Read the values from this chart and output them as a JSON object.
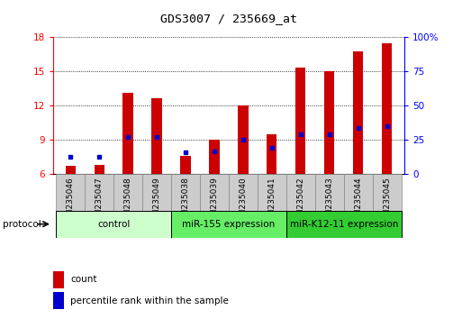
{
  "title": "GDS3007 / 235669_at",
  "categories": [
    "GSM235046",
    "GSM235047",
    "GSM235048",
    "GSM235049",
    "GSM235038",
    "GSM235039",
    "GSM235040",
    "GSM235041",
    "GSM235042",
    "GSM235043",
    "GSM235044",
    "GSM235045"
  ],
  "count_values": [
    6.7,
    6.8,
    13.1,
    12.6,
    7.6,
    9.0,
    12.0,
    9.5,
    15.3,
    15.0,
    16.7,
    17.4
  ],
  "percentile_values": [
    7.5,
    7.5,
    9.2,
    9.2,
    7.9,
    8.0,
    9.0,
    8.3,
    9.5,
    9.5,
    10.0,
    10.2
  ],
  "ylim_left": [
    6,
    18
  ],
  "ylim_right": [
    0,
    100
  ],
  "yticks_left": [
    6,
    9,
    12,
    15,
    18
  ],
  "yticks_right": [
    0,
    25,
    50,
    75,
    100
  ],
  "bar_color": "#cc0000",
  "percentile_color": "#0000cc",
  "groups": [
    {
      "label": "control",
      "start": 0,
      "end": 4,
      "color": "#ccffcc"
    },
    {
      "label": "miR-155 expression",
      "start": 4,
      "end": 8,
      "color": "#66ee66"
    },
    {
      "label": "miR-K12-11 expression",
      "start": 8,
      "end": 12,
      "color": "#33cc33"
    }
  ],
  "protocol_label": "protocol",
  "legend_count_label": "count",
  "legend_percentile_label": "percentile rank within the sample",
  "bar_width": 0.35,
  "xtick_box_color": "#cccccc",
  "xtick_box_edge": "#888888"
}
